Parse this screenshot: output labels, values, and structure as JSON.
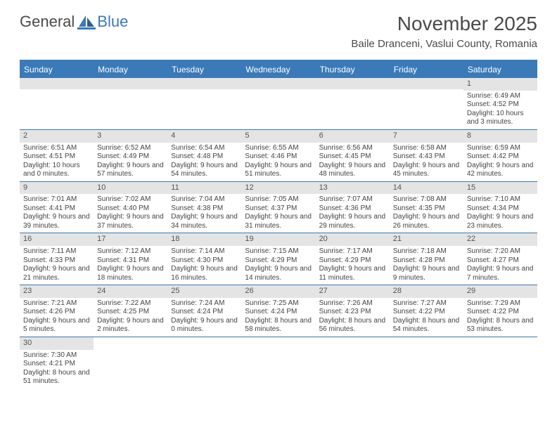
{
  "logo": {
    "text1": "General",
    "text2": "Blue"
  },
  "title": "November 2025",
  "location": "Baile Dranceni, Vaslui County, Romania",
  "colors": {
    "header_bar": "#3a7ab8",
    "day_num_bg": "#e4e4e4",
    "text": "#4a4a4a",
    "white": "#ffffff"
  },
  "weekdays": [
    "Sunday",
    "Monday",
    "Tuesday",
    "Wednesday",
    "Thursday",
    "Friday",
    "Saturday"
  ],
  "weeks": [
    [
      null,
      null,
      null,
      null,
      null,
      null,
      {
        "n": "1",
        "sr": "6:49 AM",
        "ss": "4:52 PM",
        "dl": "10 hours and 3 minutes."
      }
    ],
    [
      {
        "n": "2",
        "sr": "6:51 AM",
        "ss": "4:51 PM",
        "dl": "10 hours and 0 minutes."
      },
      {
        "n": "3",
        "sr": "6:52 AM",
        "ss": "4:49 PM",
        "dl": "9 hours and 57 minutes."
      },
      {
        "n": "4",
        "sr": "6:54 AM",
        "ss": "4:48 PM",
        "dl": "9 hours and 54 minutes."
      },
      {
        "n": "5",
        "sr": "6:55 AM",
        "ss": "4:46 PM",
        "dl": "9 hours and 51 minutes."
      },
      {
        "n": "6",
        "sr": "6:56 AM",
        "ss": "4:45 PM",
        "dl": "9 hours and 48 minutes."
      },
      {
        "n": "7",
        "sr": "6:58 AM",
        "ss": "4:43 PM",
        "dl": "9 hours and 45 minutes."
      },
      {
        "n": "8",
        "sr": "6:59 AM",
        "ss": "4:42 PM",
        "dl": "9 hours and 42 minutes."
      }
    ],
    [
      {
        "n": "9",
        "sr": "7:01 AM",
        "ss": "4:41 PM",
        "dl": "9 hours and 39 minutes."
      },
      {
        "n": "10",
        "sr": "7:02 AM",
        "ss": "4:40 PM",
        "dl": "9 hours and 37 minutes."
      },
      {
        "n": "11",
        "sr": "7:04 AM",
        "ss": "4:38 PM",
        "dl": "9 hours and 34 minutes."
      },
      {
        "n": "12",
        "sr": "7:05 AM",
        "ss": "4:37 PM",
        "dl": "9 hours and 31 minutes."
      },
      {
        "n": "13",
        "sr": "7:07 AM",
        "ss": "4:36 PM",
        "dl": "9 hours and 29 minutes."
      },
      {
        "n": "14",
        "sr": "7:08 AM",
        "ss": "4:35 PM",
        "dl": "9 hours and 26 minutes."
      },
      {
        "n": "15",
        "sr": "7:10 AM",
        "ss": "4:34 PM",
        "dl": "9 hours and 23 minutes."
      }
    ],
    [
      {
        "n": "16",
        "sr": "7:11 AM",
        "ss": "4:33 PM",
        "dl": "9 hours and 21 minutes."
      },
      {
        "n": "17",
        "sr": "7:12 AM",
        "ss": "4:31 PM",
        "dl": "9 hours and 18 minutes."
      },
      {
        "n": "18",
        "sr": "7:14 AM",
        "ss": "4:30 PM",
        "dl": "9 hours and 16 minutes."
      },
      {
        "n": "19",
        "sr": "7:15 AM",
        "ss": "4:29 PM",
        "dl": "9 hours and 14 minutes."
      },
      {
        "n": "20",
        "sr": "7:17 AM",
        "ss": "4:29 PM",
        "dl": "9 hours and 11 minutes."
      },
      {
        "n": "21",
        "sr": "7:18 AM",
        "ss": "4:28 PM",
        "dl": "9 hours and 9 minutes."
      },
      {
        "n": "22",
        "sr": "7:20 AM",
        "ss": "4:27 PM",
        "dl": "9 hours and 7 minutes."
      }
    ],
    [
      {
        "n": "23",
        "sr": "7:21 AM",
        "ss": "4:26 PM",
        "dl": "9 hours and 5 minutes."
      },
      {
        "n": "24",
        "sr": "7:22 AM",
        "ss": "4:25 PM",
        "dl": "9 hours and 2 minutes."
      },
      {
        "n": "25",
        "sr": "7:24 AM",
        "ss": "4:24 PM",
        "dl": "9 hours and 0 minutes."
      },
      {
        "n": "26",
        "sr": "7:25 AM",
        "ss": "4:24 PM",
        "dl": "8 hours and 58 minutes."
      },
      {
        "n": "27",
        "sr": "7:26 AM",
        "ss": "4:23 PM",
        "dl": "8 hours and 56 minutes."
      },
      {
        "n": "28",
        "sr": "7:27 AM",
        "ss": "4:22 PM",
        "dl": "8 hours and 54 minutes."
      },
      {
        "n": "29",
        "sr": "7:29 AM",
        "ss": "4:22 PM",
        "dl": "8 hours and 53 minutes."
      }
    ],
    [
      {
        "n": "30",
        "sr": "7:30 AM",
        "ss": "4:21 PM",
        "dl": "8 hours and 51 minutes."
      },
      null,
      null,
      null,
      null,
      null,
      null
    ]
  ],
  "labels": {
    "sunrise": "Sunrise:",
    "sunset": "Sunset:",
    "daylight": "Daylight:"
  }
}
